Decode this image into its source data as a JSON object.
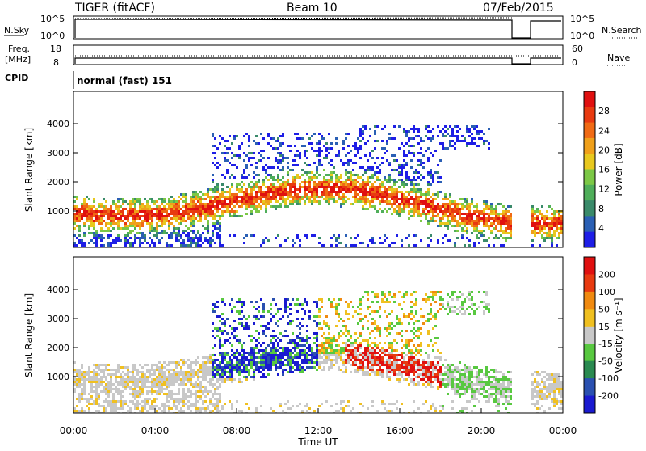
{
  "header": {
    "radar": "TIGER (fitACF)",
    "beam": "Beam 10",
    "date": "07/Feb/2015"
  },
  "status_panels": {
    "nsky": {
      "left_label": "N.Sky",
      "tick_top": "10^5",
      "tick_bottom": "10^0",
      "right_label": "N.Search",
      "right_tick_top": "10^5",
      "right_tick_bottom": "10^0"
    },
    "freq": {
      "left_label_1": "Freq.",
      "left_label_2": "[MHz]",
      "tick_top": "18",
      "tick_bottom": "8",
      "right_label": "Nave",
      "right_tick_top": "60",
      "right_tick_bottom": "0"
    },
    "cpid": {
      "left_label": "CPID",
      "text": "normal (fast) 151"
    }
  },
  "chart_data": [
    {
      "type": "heatmap",
      "name": "power",
      "xlabel": "",
      "ylabel": "Slant Range [km]",
      "y_ticks": [
        "1000",
        "2000",
        "3000",
        "4000"
      ],
      "colorbar": {
        "label": "Power [dB]",
        "ticks": [
          "4",
          "8",
          "12",
          "16",
          "20",
          "24",
          "28"
        ],
        "colors": [
          "#1e1ee6",
          "#2a5fb4",
          "#3a8a6a",
          "#4fae5a",
          "#7cc846",
          "#e8c81e",
          "#f0a01a",
          "#f06a14",
          "#e83a10",
          "#e01010"
        ]
      }
    },
    {
      "type": "heatmap",
      "name": "velocity",
      "xlabel": "Time UT",
      "ylabel": "Slant Range [km]",
      "x_ticks": [
        "00:00",
        "04:00",
        "08:00",
        "12:00",
        "16:00",
        "20:00",
        "00:00"
      ],
      "y_ticks": [
        "1000",
        "2000",
        "3000",
        "4000"
      ],
      "colorbar": {
        "label": "Velocity [m s⁻¹]",
        "ticks": [
          "200",
          "100",
          "50",
          "15",
          "-15",
          "-50",
          "-100",
          "-200"
        ],
        "colors": [
          "#1a1ad0",
          "#2a50b0",
          "#2a8a50",
          "#58c840",
          "#c8c8c8",
          "#f0c020",
          "#f08a10",
          "#e83a10",
          "#e01010"
        ]
      }
    }
  ]
}
